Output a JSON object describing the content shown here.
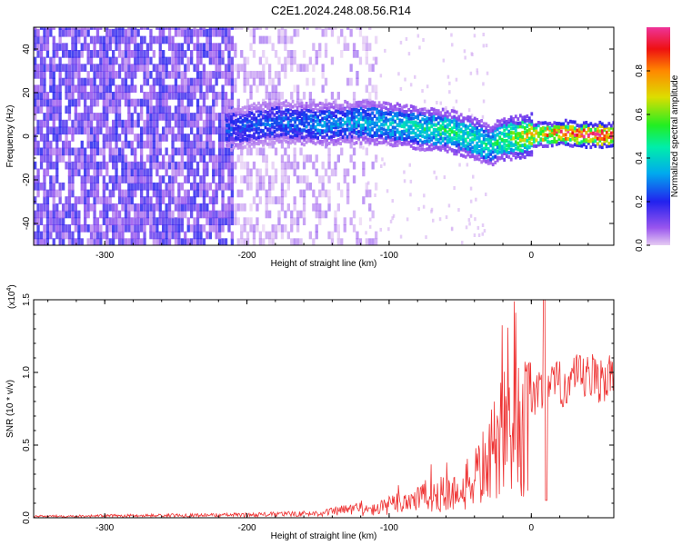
{
  "title": "C2E1.2024.248.08.56.R14",
  "chart_data": [
    {
      "type": "heatmap",
      "xlabel": "Height of straight line (km)",
      "ylabel": "Frequency (Hz)",
      "xlim": [
        -350,
        58
      ],
      "ylim": [
        -50,
        50
      ],
      "xticks": [
        -300,
        -200,
        -100,
        0
      ],
      "yticks": [
        -40,
        -20,
        0,
        20,
        40
      ],
      "colorbar": {
        "label": "Normalized spectral amplitude",
        "range": [
          0,
          1
        ],
        "ticks": [
          "0.0",
          "0.2",
          "0.4",
          "0.6",
          "0.8"
        ],
        "tick_values": [
          0,
          0.2,
          0.4,
          0.6,
          0.8
        ]
      },
      "ridge": [
        {
          "x": -210,
          "y": 3,
          "amp": 0.25
        },
        {
          "x": -180,
          "y": 6,
          "amp": 0.28
        },
        {
          "x": -150,
          "y": 5,
          "amp": 0.32
        },
        {
          "x": -120,
          "y": 6,
          "amp": 0.35
        },
        {
          "x": -100,
          "y": 5,
          "amp": 0.4
        },
        {
          "x": -80,
          "y": 3,
          "amp": 0.45
        },
        {
          "x": -60,
          "y": 2,
          "amp": 0.48
        },
        {
          "x": -40,
          "y": -2,
          "amp": 0.5
        },
        {
          "x": -30,
          "y": -5,
          "amp": 0.45
        },
        {
          "x": -20,
          "y": -2,
          "amp": 0.55
        },
        {
          "x": 0,
          "y": 0,
          "amp": 0.75
        },
        {
          "x": 20,
          "y": 1,
          "amp": 0.9
        },
        {
          "x": 40,
          "y": 0,
          "amp": 0.95
        },
        {
          "x": 58,
          "y": 0,
          "amp": 0.95
        }
      ]
    },
    {
      "type": "line",
      "xlabel": "Height of straight line (km)",
      "ylabel": "SNR (10 * v/v)",
      "yscale_label": "(x10",
      "yscale_exp": "4",
      "yscale_close": ")",
      "xlim": [
        -350,
        58
      ],
      "ylim": [
        0,
        1.5
      ],
      "xticks": [
        -300,
        -200,
        -100,
        0
      ],
      "yticks": [
        "0.0",
        "0.5",
        "1.0",
        "1.5"
      ],
      "ytick_values": [
        0,
        0.5,
        1.0,
        1.5
      ],
      "color": "#ee3333",
      "envelope": [
        {
          "x": -350,
          "y": 0.01
        },
        {
          "x": -200,
          "y": 0.02
        },
        {
          "x": -150,
          "y": 0.03
        },
        {
          "x": -110,
          "y": 0.08
        },
        {
          "x": -80,
          "y": 0.2
        },
        {
          "x": -50,
          "y": 0.25
        },
        {
          "x": -30,
          "y": 0.55
        },
        {
          "x": -20,
          "y": 0.8
        },
        {
          "x": 0,
          "y": 0.9
        },
        {
          "x": 10,
          "y": 0.95
        },
        {
          "x": 30,
          "y": 1.02
        },
        {
          "x": 58,
          "y": 1.05
        }
      ]
    }
  ]
}
